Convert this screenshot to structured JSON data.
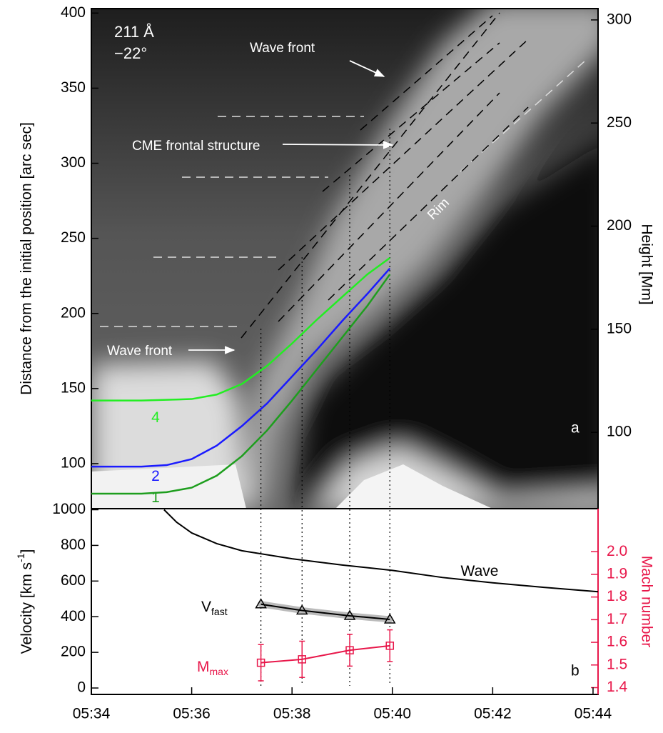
{
  "chart_data": [
    {
      "type": "line",
      "panel_label": "a",
      "ylabel": "Distance from the initial position [arc sec]",
      "y2label": "Height [Mm]",
      "xlim": [
        34,
        44.1
      ],
      "ylim": [
        70,
        403
      ],
      "yticks": [
        100,
        150,
        200,
        250,
        300,
        350,
        400
      ],
      "y2lim": [
        63,
        305.5
      ],
      "y2ticks": [
        100,
        150,
        200,
        250,
        300
      ],
      "annotations": [
        "211 Å",
        "−22°",
        "Wave front",
        "CME frontal structure",
        "Wave front",
        "Rim"
      ],
      "series": [
        {
          "name": "4",
          "color": "#22ee22",
          "x": [
            34,
            35,
            36,
            36.5,
            37,
            37.5,
            38,
            38.5,
            39,
            39.5,
            39.95
          ],
          "values": [
            142,
            142,
            143,
            146,
            153,
            165,
            180,
            196,
            211,
            226,
            237
          ]
        },
        {
          "name": "2",
          "color": "#1a1aff",
          "x": [
            34,
            35,
            35.5,
            36,
            36.5,
            37,
            37.5,
            38,
            38.5,
            39,
            39.5,
            39.95
          ],
          "values": [
            98,
            98,
            99,
            103,
            112,
            125,
            140,
            158,
            176,
            195,
            213,
            230
          ]
        },
        {
          "name": "1",
          "color": "#1e9e1e",
          "x": [
            34,
            35,
            35.5,
            36,
            36.5,
            37,
            37.5,
            38,
            38.5,
            39,
            39.5,
            39.95
          ],
          "values": [
            80,
            80,
            81,
            84,
            92,
            105,
            122,
            142,
            163,
            184,
            205,
            226
          ]
        }
      ]
    },
    {
      "type": "line",
      "panel_label": "b",
      "ylabel": [
        "Velocity [km s",
        "-1",
        "]"
      ],
      "y2label": "Mach number",
      "xlim": [
        34,
        44.1
      ],
      "xticks": [
        {
          "value": 34,
          "label": "05:34"
        },
        {
          "value": 36,
          "label": "05:36"
        },
        {
          "value": 38,
          "label": "05:38"
        },
        {
          "value": 40,
          "label": "05:40"
        },
        {
          "value": 42,
          "label": "05:42"
        },
        {
          "value": 44,
          "label": "05:44"
        }
      ],
      "ylim": [
        -36,
        1006
      ],
      "yticks": [
        0,
        200,
        400,
        600,
        800,
        1000
      ],
      "y2lim": [
        1.37,
        2.19
      ],
      "y2ticks": [
        1.4,
        1.5,
        1.6,
        1.7,
        1.8,
        1.9,
        {
          "value": 2,
          "label": "2.0"
        }
      ],
      "y2color": "#e8174a",
      "series": [
        {
          "name": "Wave",
          "color": "#000000",
          "x": [
            35.45,
            35.7,
            36,
            36.5,
            37,
            38,
            39,
            40,
            41,
            42,
            43,
            44.1
          ],
          "values": [
            1000,
            930,
            870,
            810,
            770,
            725,
            690,
            660,
            620,
            590,
            565,
            540
          ]
        },
        {
          "name": "V",
          "name_sub": "fast",
          "color": "#000000",
          "marker": "triangle",
          "x": [
            37.38,
            38.2,
            39.15,
            39.95
          ],
          "values": [
            470,
            435,
            405,
            385
          ]
        },
        {
          "name": "M",
          "name_sub": "max",
          "color": "#e8174a",
          "marker": "square",
          "axis": "y2",
          "x": [
            37.38,
            38.2,
            39.15,
            39.95
          ],
          "values": [
            1.51,
            1.525,
            1.565,
            1.585
          ],
          "errors": [
            0.08,
            0.08,
            0.07,
            0.07
          ]
        }
      ]
    }
  ]
}
